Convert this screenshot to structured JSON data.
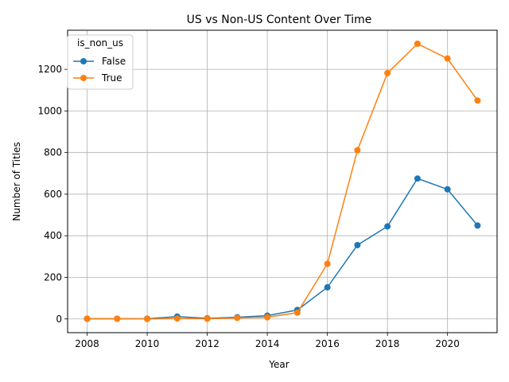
{
  "chart_data": {
    "type": "line",
    "title": "US vs Non-US Content Over Time",
    "xlabel": "Year",
    "ylabel": "Number of Titles",
    "x": [
      2008,
      2009,
      2010,
      2011,
      2012,
      2013,
      2014,
      2015,
      2016,
      2017,
      2018,
      2019,
      2020,
      2021
    ],
    "xlim": [
      2007.35,
      2021.65
    ],
    "ylim": [
      -66,
      1388
    ],
    "xticks": [
      2008,
      2010,
      2012,
      2014,
      2016,
      2018,
      2020
    ],
    "yticks": [
      0,
      200,
      400,
      600,
      800,
      1000,
      1200
    ],
    "grid": true,
    "legend": {
      "title": "is_non_us",
      "placement": "top-left"
    },
    "series": [
      {
        "name": "False",
        "color": "#1f77b4",
        "values": [
          1,
          1,
          1,
          11,
          3,
          8,
          16,
          43,
          152,
          355,
          445,
          675,
          623,
          449
        ]
      },
      {
        "name": "True",
        "color": "#ff7f0e",
        "values": [
          1,
          1,
          0,
          2,
          1,
          5,
          8,
          30,
          265,
          811,
          1182,
          1323,
          1252,
          1050
        ]
      }
    ]
  }
}
